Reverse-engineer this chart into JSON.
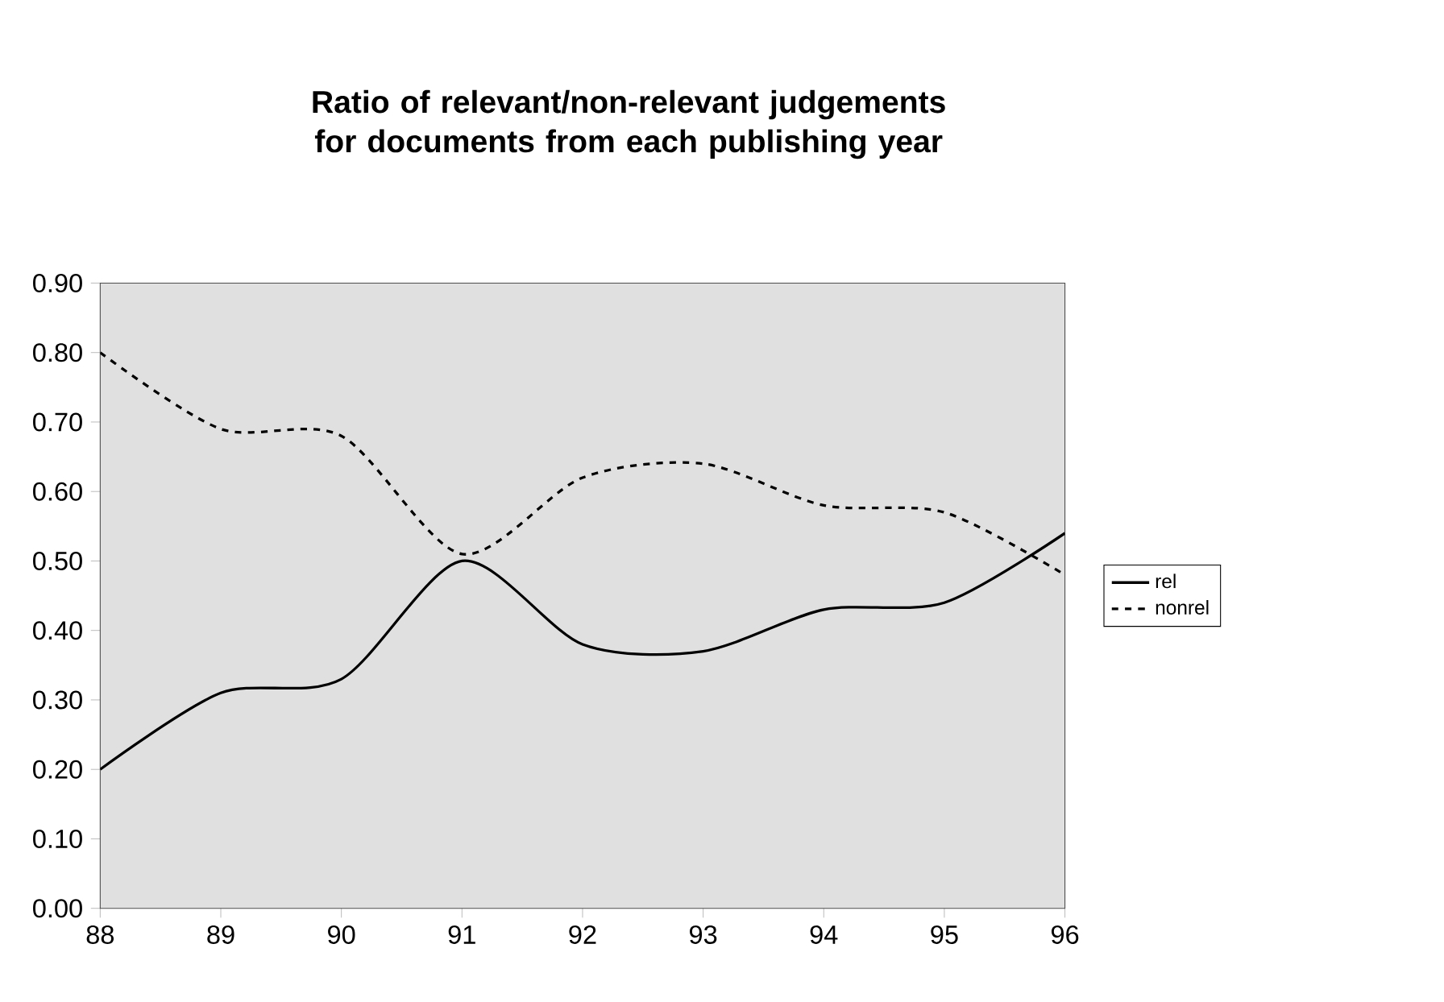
{
  "chart_data": {
    "type": "line",
    "title": "Ratio of relevant/non-relevant judgements for documents from each publishing year",
    "x": [
      88,
      89,
      90,
      91,
      92,
      93,
      94,
      95,
      96
    ],
    "series": [
      {
        "name": "rel",
        "color": "#000000",
        "line_style": "solid",
        "values": [
          0.2,
          0.31,
          0.33,
          0.5,
          0.38,
          0.37,
          0.43,
          0.44,
          0.54
        ]
      },
      {
        "name": "nonrel",
        "color": "#000000",
        "line_style": "dashed",
        "values": [
          0.8,
          0.69,
          0.68,
          0.51,
          0.62,
          0.64,
          0.58,
          0.57,
          0.48
        ]
      }
    ],
    "xlim": [
      88,
      96
    ],
    "xticks": [
      88,
      89,
      90,
      91,
      92,
      93,
      94,
      95,
      96
    ],
    "ylim": [
      0,
      0.9
    ],
    "yticks": [
      {
        "value": 0,
        "label": "0.00"
      },
      {
        "value": 0.1,
        "label": "0.10"
      },
      {
        "value": 0.2,
        "label": "0.20"
      },
      {
        "value": 0.3,
        "label": "0.30"
      },
      {
        "value": 0.4,
        "label": "0.40"
      },
      {
        "value": 0.5,
        "label": "0.50"
      },
      {
        "value": 0.6,
        "label": "0.60"
      },
      {
        "value": 0.7,
        "label": "0.70"
      },
      {
        "value": 0.8,
        "label": "0.80"
      },
      {
        "value": 0.9,
        "label": "0.90"
      }
    ],
    "grid": false,
    "legend": "right",
    "marker": "none"
  }
}
